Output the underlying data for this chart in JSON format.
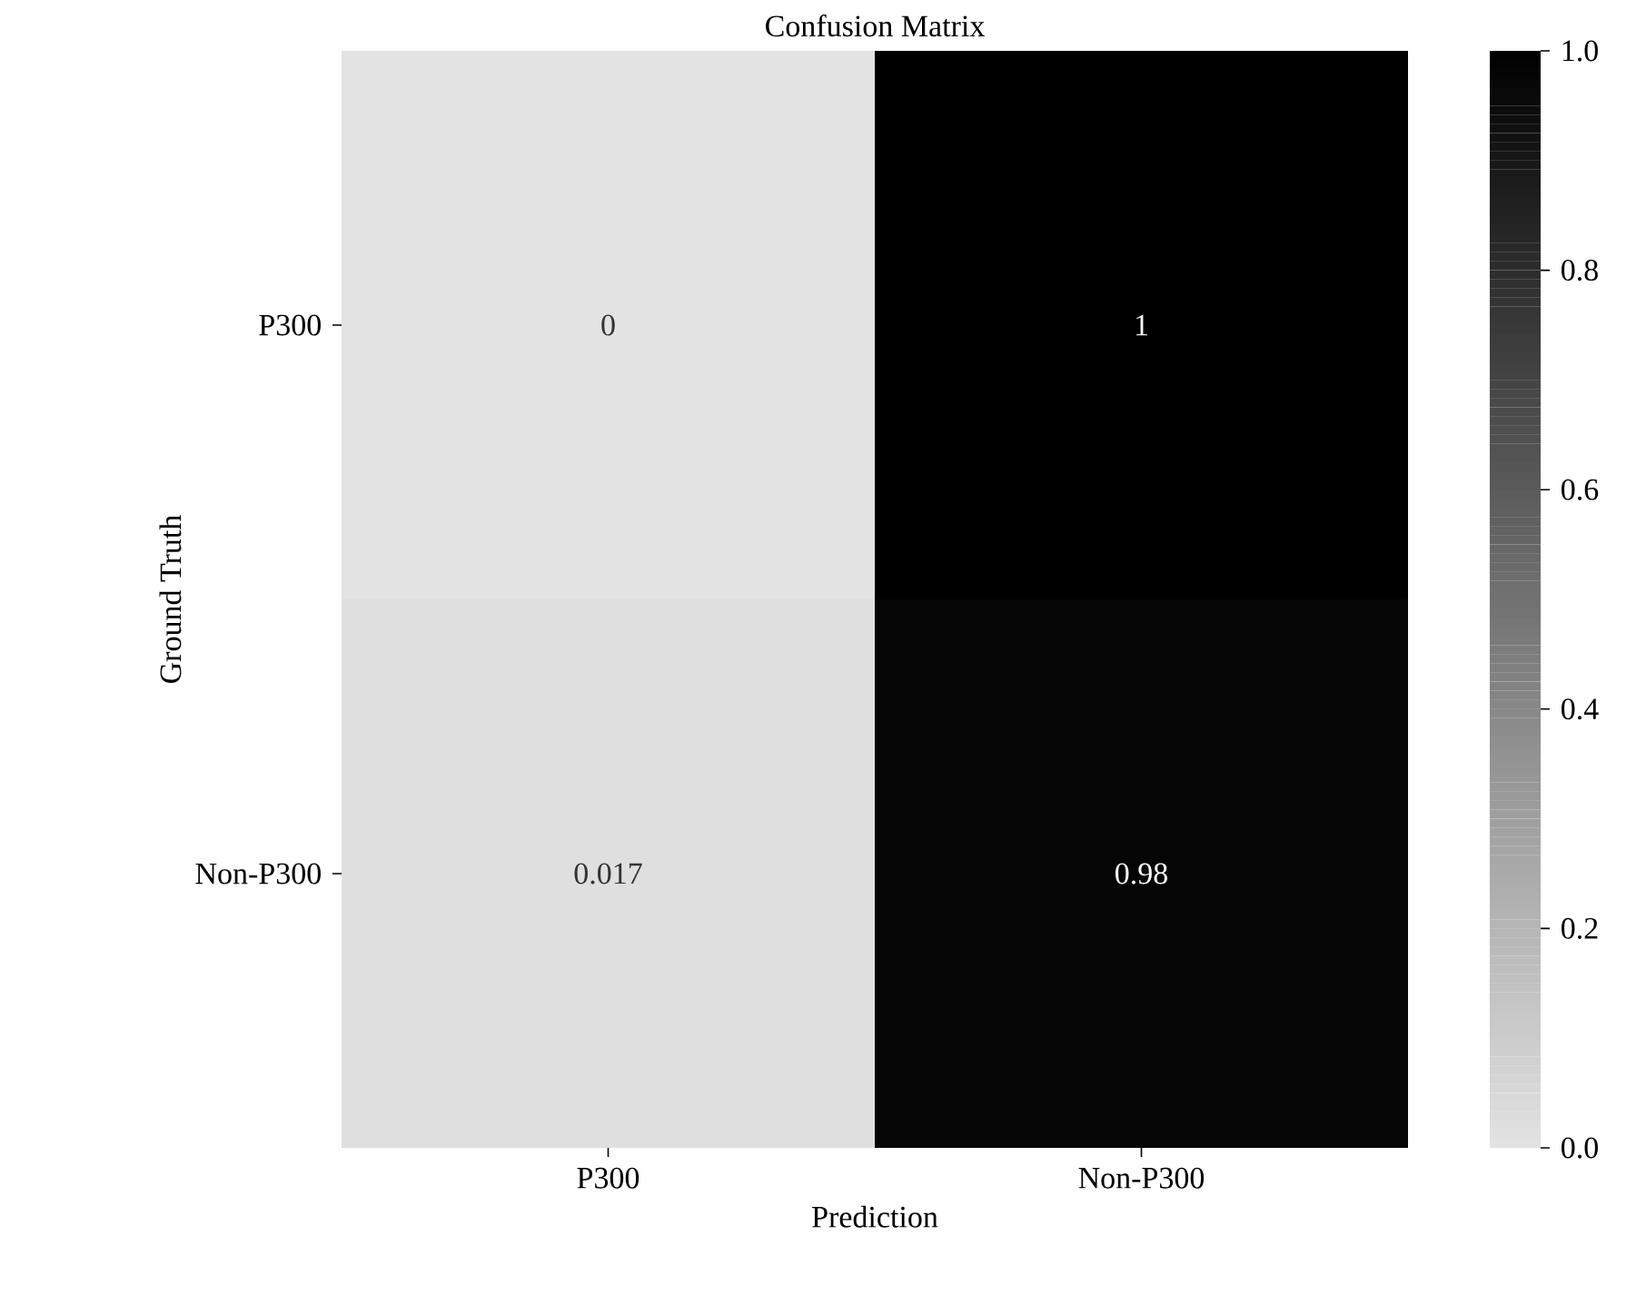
{
  "chart_data": {
    "type": "heatmap",
    "title": "Confusion Matrix",
    "xlabel": "Prediction",
    "ylabel": "Ground Truth",
    "categories": [
      "P300",
      "Non-P300"
    ],
    "y_categories": [
      "P300",
      "Non-P300"
    ],
    "cells": [
      [
        0,
        1
      ],
      [
        0.017,
        0.98
      ]
    ],
    "clim": [
      0,
      1
    ],
    "cticks": [
      {
        "value": 0,
        "label": "0.0"
      },
      {
        "value": 0.2,
        "label": "0.2"
      },
      {
        "value": 0.4,
        "label": "0.4"
      },
      {
        "value": 0.6,
        "label": "0.6"
      },
      {
        "value": 0.8,
        "label": "0.8"
      },
      {
        "value": 1,
        "label": "1.0"
      }
    ],
    "data_labels": true
  }
}
